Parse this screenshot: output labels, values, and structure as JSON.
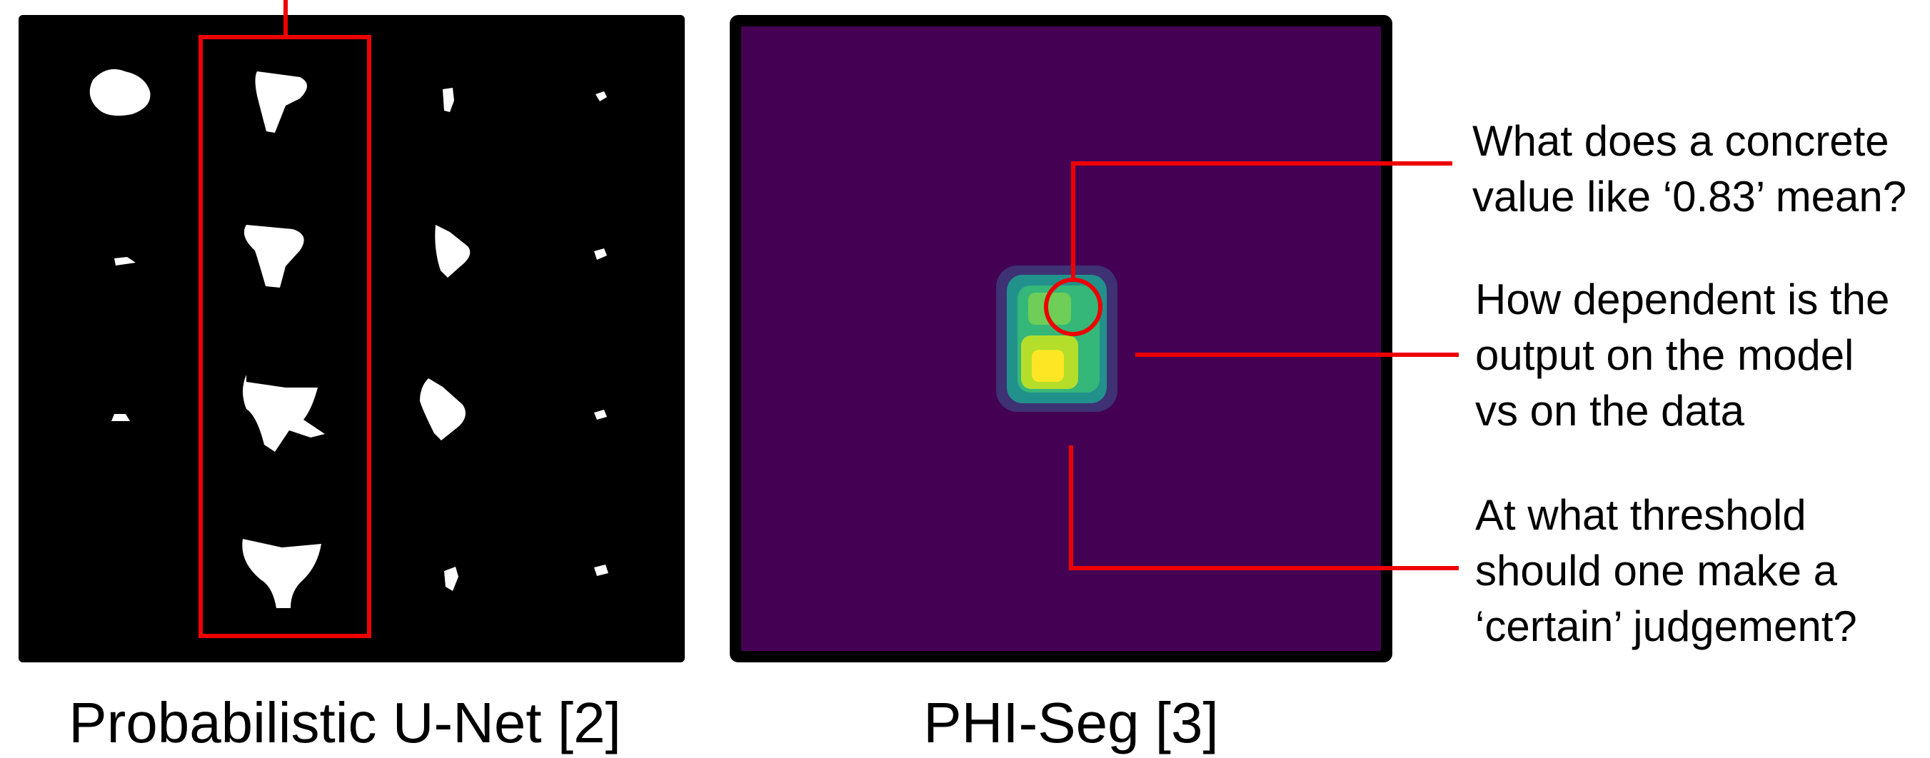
{
  "captions": {
    "left": "Probabilistic U-Net [2]",
    "right": "PHI-Seg [3]"
  },
  "questions": [
    {
      "lines": [
        "What does a concrete",
        "value like ‘0.83’ mean?"
      ]
    },
    {
      "lines": [
        "How dependent is the",
        "output on the model",
        "vs on the data"
      ]
    },
    {
      "lines": [
        "At what threshold",
        "should one make a",
        "‘certain’ judgement?"
      ]
    }
  ]
}
